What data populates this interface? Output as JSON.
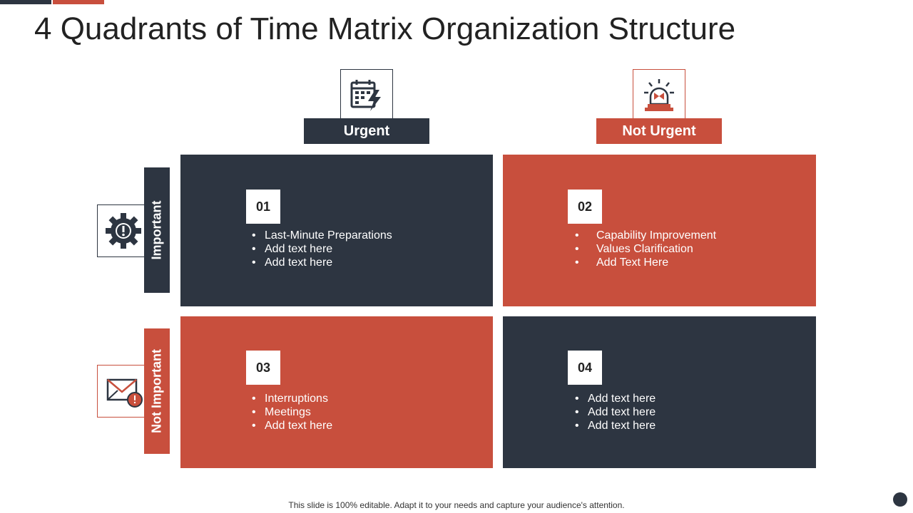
{
  "slide": {
    "title": "4 Quadrants of Time Matrix Organization Structure",
    "footer": "This slide is 100% editable. Adapt it to your needs and capture your audience's attention."
  },
  "columns": [
    {
      "label": "Urgent",
      "icon": "calendar-lightning-icon",
      "color": "#2d3541"
    },
    {
      "label": "Not Urgent",
      "icon": "siren-alarm-icon",
      "color": "#c84f3d"
    }
  ],
  "rows": [
    {
      "label": "Important",
      "icon": "gear-alert-icon",
      "color": "#2d3541"
    },
    {
      "label": "Not Important",
      "icon": "mail-alert-icon",
      "color": "#c84f3d"
    }
  ],
  "quadrants": [
    {
      "number": "01",
      "items": [
        "Last-Minute Preparations",
        "Add text here",
        "Add text here"
      ]
    },
    {
      "number": "02",
      "items": [
        "Capability Improvement",
        "Values Clarification",
        "Add Text Here"
      ]
    },
    {
      "number": "03",
      "items": [
        "Interruptions",
        "Meetings",
        "Add text here"
      ]
    },
    {
      "number": "04",
      "items": [
        "Add text here",
        "Add text here",
        "Add text here"
      ]
    }
  ],
  "colors": {
    "dark": "#2d3541",
    "accent": "#c84f3d"
  }
}
